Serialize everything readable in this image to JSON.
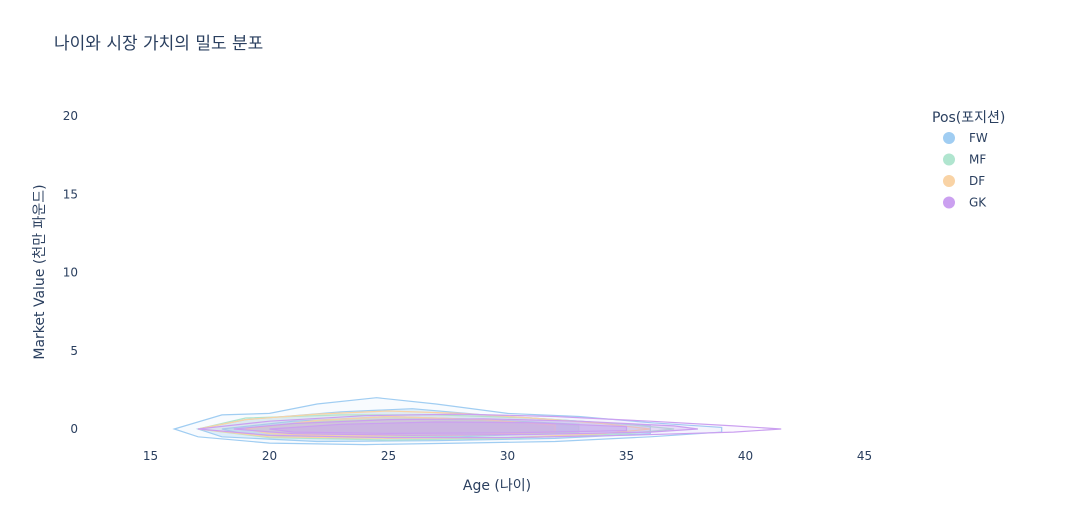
{
  "chart_data": {
    "type": "contour",
    "title": "나이와 시장 가치의 밀도 분포",
    "xlabel": "Age (나이)",
    "ylabel": "Market Value (천만 파운드)",
    "xlim": [
      15,
      45
    ],
    "ylim": [
      -1,
      21
    ],
    "x_ticks": [
      "15",
      "20",
      "25",
      "30",
      "35",
      "40",
      "45"
    ],
    "y_ticks": [
      "0",
      "5",
      "10",
      "15",
      "20"
    ],
    "grid": false,
    "legend": {
      "title": "Pos(포지션)",
      "placement": "top-right"
    },
    "series": [
      {
        "name": "FW",
        "color": "#a0cdf2",
        "contours": [
          [
            [
              16,
              0
            ],
            [
              18,
              0.9
            ],
            [
              20,
              1.0
            ],
            [
              22,
              1.6
            ],
            [
              24.5,
              2.0
            ],
            [
              27,
              1.6
            ],
            [
              30,
              1.0
            ],
            [
              33,
              0.8
            ],
            [
              36,
              0.4
            ],
            [
              39,
              0.1
            ],
            [
              39,
              -0.2
            ],
            [
              36,
              -0.5
            ],
            [
              32,
              -0.8
            ],
            [
              28,
              -0.9
            ],
            [
              24,
              -1.0
            ],
            [
              20,
              -0.9
            ],
            [
              17,
              -0.5
            ],
            [
              16,
              0
            ]
          ],
          [
            [
              17,
              0
            ],
            [
              19,
              0.6
            ],
            [
              23,
              1.1
            ],
            [
              26,
              1.3
            ],
            [
              29,
              0.9
            ],
            [
              33,
              0.5
            ],
            [
              36,
              0.2
            ],
            [
              36,
              -0.3
            ],
            [
              32,
              -0.6
            ],
            [
              27,
              -0.75
            ],
            [
              22,
              -0.8
            ],
            [
              18,
              -0.5
            ],
            [
              17,
              0
            ]
          ],
          [
            [
              18,
              0
            ],
            [
              21,
              0.5
            ],
            [
              25,
              0.8
            ],
            [
              29,
              0.6
            ],
            [
              33,
              0.3
            ],
            [
              33,
              -0.2
            ],
            [
              28,
              -0.5
            ],
            [
              23,
              -0.6
            ],
            [
              19,
              -0.35
            ],
            [
              18,
              0
            ]
          ]
        ]
      },
      {
        "name": "MF",
        "color": "#b0e5cf",
        "contours": [
          [
            [
              17,
              0
            ],
            [
              19,
              0.7
            ],
            [
              23,
              0.9
            ],
            [
              27,
              0.9
            ],
            [
              31,
              0.7
            ],
            [
              35,
              0.3
            ],
            [
              37,
              0
            ],
            [
              35,
              -0.3
            ],
            [
              30,
              -0.6
            ],
            [
              25,
              -0.7
            ],
            [
              20,
              -0.55
            ],
            [
              17,
              0
            ]
          ],
          [
            [
              19,
              0
            ],
            [
              22,
              0.5
            ],
            [
              26,
              0.65
            ],
            [
              30,
              0.5
            ],
            [
              33,
              0.2
            ],
            [
              33,
              -0.2
            ],
            [
              29,
              -0.4
            ],
            [
              24,
              -0.5
            ],
            [
              20,
              -0.3
            ],
            [
              19,
              0
            ]
          ]
        ]
      },
      {
        "name": "DF",
        "color": "#f9d3a5",
        "contours": [
          [
            [
              17,
              0
            ],
            [
              19,
              0.6
            ],
            [
              22,
              0.95
            ],
            [
              25,
              1.15
            ],
            [
              28,
              1.0
            ],
            [
              31,
              0.7
            ],
            [
              34,
              0.35
            ],
            [
              36,
              0
            ],
            [
              34,
              -0.3
            ],
            [
              30,
              -0.55
            ],
            [
              25,
              -0.6
            ],
            [
              20,
              -0.5
            ],
            [
              17,
              0
            ]
          ],
          [
            [
              19,
              0
            ],
            [
              22,
              0.55
            ],
            [
              25,
              0.8
            ],
            [
              29,
              0.6
            ],
            [
              32,
              0.25
            ],
            [
              32,
              -0.2
            ],
            [
              28,
              -0.4
            ],
            [
              23,
              -0.45
            ],
            [
              20,
              -0.3
            ],
            [
              19,
              0
            ]
          ]
        ]
      },
      {
        "name": "GK",
        "color": "#cba0f0",
        "contours": [
          [
            [
              17,
              0
            ],
            [
              20,
              0.5
            ],
            [
              24,
              0.85
            ],
            [
              28,
              0.95
            ],
            [
              32,
              0.8
            ],
            [
              36,
              0.5
            ],
            [
              39.5,
              0.2
            ],
            [
              41.5,
              0
            ],
            [
              39.5,
              -0.2
            ],
            [
              35,
              -0.4
            ],
            [
              30,
              -0.55
            ],
            [
              25,
              -0.55
            ],
            [
              20,
              -0.4
            ],
            [
              17,
              0
            ]
          ],
          [
            [
              18.5,
              0
            ],
            [
              21,
              0.35
            ],
            [
              25,
              0.6
            ],
            [
              29,
              0.65
            ],
            [
              33,
              0.5
            ],
            [
              37,
              0.2
            ],
            [
              38,
              0
            ],
            [
              36,
              -0.2
            ],
            [
              31,
              -0.35
            ],
            [
              26,
              -0.4
            ],
            [
              21,
              -0.3
            ],
            [
              18.5,
              0
            ]
          ],
          [
            [
              20,
              0
            ],
            [
              23,
              0.3
            ],
            [
              27,
              0.45
            ],
            [
              31,
              0.4
            ],
            [
              35,
              0.15
            ],
            [
              35,
              -0.1
            ],
            [
              30,
              -0.25
            ],
            [
              25,
              -0.28
            ],
            [
              21,
              -0.2
            ],
            [
              20,
              0
            ]
          ]
        ]
      }
    ]
  }
}
